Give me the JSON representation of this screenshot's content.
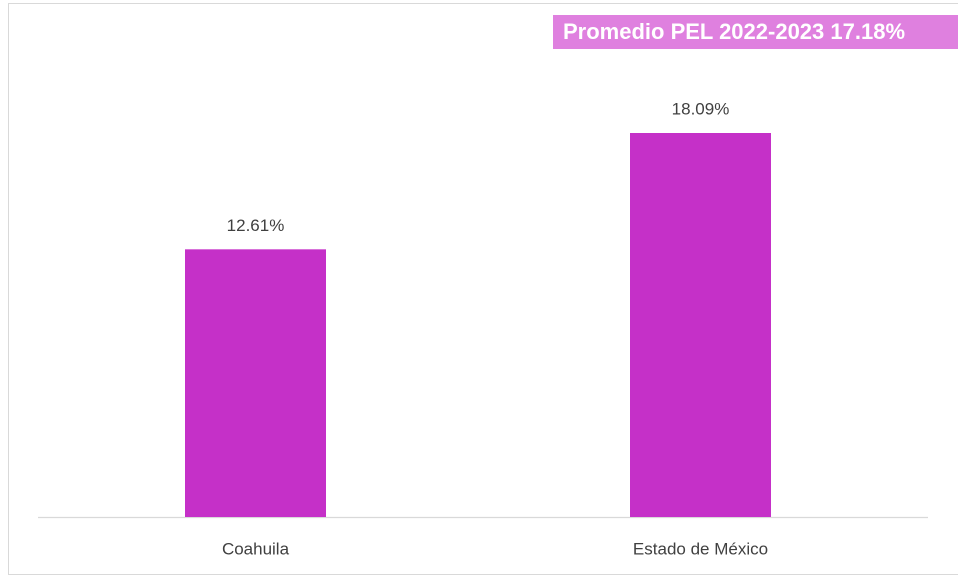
{
  "chart_data": {
    "type": "bar",
    "annotation": "Promedio PEL 2022-2023 17.18%",
    "categories": [
      "Coahuila",
      "Estado de México"
    ],
    "values": [
      12.61,
      18.09
    ],
    "value_labels": [
      "12.61%",
      "18.09%"
    ],
    "color": "#c530c8"
  }
}
